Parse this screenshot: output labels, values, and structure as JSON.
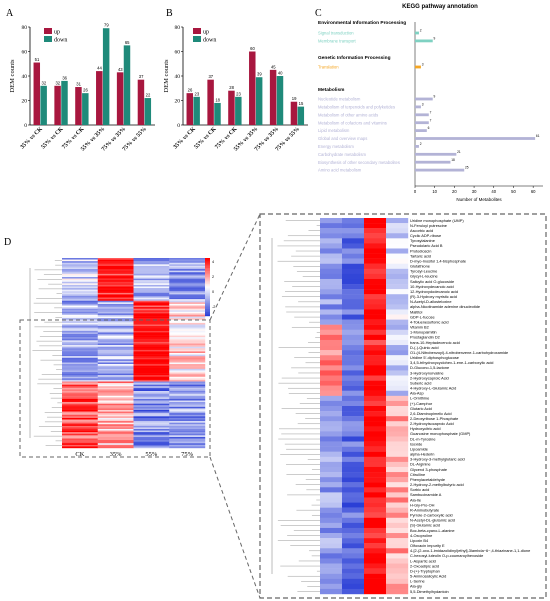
{
  "panel_labels": {
    "a": "A",
    "b": "B",
    "c": "C",
    "d": "D"
  },
  "colors": {
    "up": "#a8173f",
    "down": "#1f8a7a",
    "env": "#7fd1c2",
    "genetic": "#f5a623",
    "metab": "#b3b3d6",
    "heat_low": "#2b3fd6",
    "heat_mid": "#ffffff",
    "heat_high": "#e60000"
  },
  "chart_data": [
    {
      "type": "bar",
      "panel": "A",
      "ylabel": "DEM counts",
      "ylim": [
        0,
        80
      ],
      "yticks": [
        0,
        20,
        40,
        60,
        80
      ],
      "categories": [
        "35% vs CK",
        "55% vs CK",
        "75% vs CK",
        "55% vs 35%",
        "75% vs 35%",
        "75% vs 55%"
      ],
      "series": [
        {
          "name": "up",
          "values": [
            51,
            32,
            31,
            44,
            43,
            37
          ]
        },
        {
          "name": "down",
          "values": [
            32,
            36,
            26,
            79,
            65,
            22
          ]
        }
      ]
    },
    {
      "type": "bar",
      "panel": "B",
      "ylabel": "DEM counts",
      "ylim": [
        0,
        80
      ],
      "yticks": [
        0,
        20,
        40,
        60,
        80
      ],
      "categories": [
        "35% vs CK",
        "55% vs CK",
        "75% vs CK",
        "55% vs 35%",
        "75% vs 35%",
        "75% vs 55%"
      ],
      "series": [
        {
          "name": "up",
          "values": [
            26,
            37,
            28,
            60,
            45,
            19
          ]
        },
        {
          "name": "down",
          "values": [
            23,
            18,
            23,
            39,
            40,
            15
          ]
        }
      ]
    },
    {
      "type": "bar",
      "panel": "C",
      "title": "KEGG pathway annotation",
      "xlabel": "Number of Metabolites",
      "xlim": [
        0,
        65
      ],
      "xticks": [
        0,
        10,
        20,
        30,
        40,
        50,
        60
      ],
      "groups": [
        {
          "name": "Environmental Information Processing",
          "items": [
            {
              "label": "Signal transduction",
              "value": 2
            },
            {
              "label": "Membrane transport",
              "value": 9
            }
          ]
        },
        {
          "name": "Genetic Information Processing",
          "items": [
            {
              "label": "Translation",
              "value": 3
            }
          ]
        },
        {
          "name": "Metabolism",
          "items": [
            {
              "label": "Nucleotide metabolism",
              "value": 9
            },
            {
              "label": "Metabolism of terpenoids and polyketides",
              "value": 3
            },
            {
              "label": "Metabolism of other amino acids",
              "value": 7
            },
            {
              "label": "Metabolism of cofactors and vitamins",
              "value": 7
            },
            {
              "label": "Lipid metabolism",
              "value": 6
            },
            {
              "label": "Global and overview maps",
              "value": 61
            },
            {
              "label": "Energy metabolism",
              "value": 2
            },
            {
              "label": "Carbohydrate metabolism",
              "value": 21
            },
            {
              "label": "Biosynthesis of other secondary metabolites",
              "value": 18
            },
            {
              "label": "Amino acid metabolism",
              "value": 25
            }
          ]
        }
      ]
    },
    {
      "type": "heatmap",
      "panel": "D",
      "columns": [
        "CK",
        "35%",
        "55%",
        "75%"
      ],
      "colorbar_ticks": [
        "4",
        "2",
        "0",
        "-2"
      ],
      "rows": [
        "Uridine monophosphate (UMP)",
        "N-Feruloyl putrescine",
        "Ascorbic acid",
        "Cyclic ADP-ribose",
        "Tyrosylalanine",
        "Pseudolaric Acid B",
        "Protodioscin",
        "Tartaric acid",
        "D-myo-Inositol 1,4-bisphosphate",
        "Glutathione",
        "Tyrosyl-Leucine",
        "Glycyl-L-leucine",
        "Salicylic acid O-glucoside",
        "10-Hydroxydecanoic acid",
        "12-Hydroxydodecanoic acid",
        "(R)-3-Hydroxy myristic acid",
        "N-Acetyl-D-allosteloxine",
        "alpha-Nicotinamide adenine dinucleotide",
        "Maltitol",
        "GDP-L-fucose",
        "4-Toluenesulfonic acid",
        "Vitamin B2",
        "1-Monopalmitin",
        "Prostaglandin D2",
        "trans-10-Heptadecenoic acid",
        "D-(-)-Quinic acid",
        "O1-(4-Nitrobenzoyl)-4-nitrobenzene-1-carbohydroxamide",
        "Uridine 5'-diphosphoglucose",
        "3,4,5-trihydroxycyclohex-1-ene-1-carboxylic acid",
        "D-Glucono-1,5-lactone",
        "3-Hydroxynorvaline",
        "2-Hydroxycaproic Acid",
        "Suberic acid",
        "4-Hydroxy-L-Glutamic Acid",
        "Ala-Asp",
        "L-Ornithine",
        "(+)-Camphor",
        "Glutaric Acid",
        "2,6-Diaminopimelic Acid",
        "2-Deoxyribose 1-Phosphate",
        "2-Hydroxyisocaproic Acid",
        "Hydroxycitric acid",
        "Guanosine monophosphate (GMP)",
        "DL-m-Tyrosine",
        "Isoxide",
        "Lipoamide",
        "alpha-Hederin",
        "3-Hydroxy-3-methylglutaric acid",
        "DL-Arginine",
        "Glycerol 3-phosphate",
        "Citrulline",
        "Phenylacetaldehyde",
        "2-Hydroxy-2-methylbutyric acid",
        "Sorbic acid",
        "Sambucinamide A",
        "Ala-Ile",
        "H-Gly-Pro-OH",
        "R-Aminobutyrate",
        "Pyrrole-2-carboxylic acid",
        "N-Acetyl-DL-glutamic acid",
        "(S)-Glutamic acid",
        "Boc-beta-cyano-L-alanine",
        "4-Oxoproline",
        "Lipoxin B4",
        "Olfoxacin impurity E",
        "4-[2-(2-oxo-1-imidazolidinyl)ethyl]-3lambda~6~,4-thiazinane-1,1-dione",
        "C-hexosyl-luteolin O-p-coumaroylhexoside",
        "L-Aspartic acid",
        "2-Oxoadipic acid",
        "D-(+)-Tryptophan",
        "5-Aminosalicylic Acid",
        "L-Serine",
        "Ala-gly",
        "5,5-Dimethylhydantoin"
      ]
    }
  ]
}
